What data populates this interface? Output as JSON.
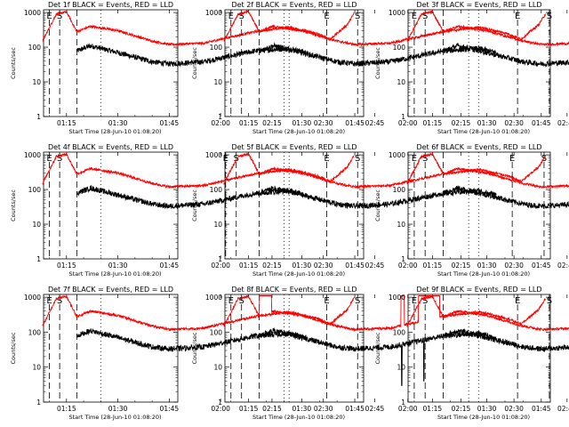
{
  "figure": {
    "panels": [
      {
        "title": "Det 1f BLACK = Events, RED = LLD",
        "detector": "1f",
        "variant": "normal"
      },
      {
        "title": "Det 2f BLACK = Events, RED = LLD",
        "detector": "2f",
        "variant": "normal"
      },
      {
        "title": "Det 3f BLACK = Events, RED = LLD",
        "detector": "3f",
        "variant": "normal"
      },
      {
        "title": "Det 4f BLACK = Events, RED = LLD",
        "detector": "4f",
        "variant": "normal"
      },
      {
        "title": "Det 5f BLACK = Events, RED = LLD",
        "detector": "5f",
        "variant": "shifted"
      },
      {
        "title": "Det 6f BLACK = Events, RED = LLD",
        "detector": "6f",
        "variant": "normal"
      },
      {
        "title": "Det 7f BLACK = Events, RED = LLD",
        "detector": "7f",
        "variant": "normal"
      },
      {
        "title": "Det 8f BLACK = Events, RED = LLD",
        "detector": "8f",
        "variant": "spiky"
      },
      {
        "title": "Det 9f BLACK = Events, RED = LLD",
        "detector": "9f",
        "variant": "dropout"
      }
    ]
  },
  "chart_data": {
    "type": "line",
    "layout": "3x3 grid of identical log-scale time series panels",
    "xlabel": "Start Time (28-Jun-10 01:08:20)",
    "ylabel": "Counts/sec",
    "x_ticks": [
      "01:15",
      "01:30",
      "01:45",
      "02:00",
      "02:15",
      "02:30",
      "02:45"
    ],
    "x_range_minutes_after_01_00": [
      8.3,
      47.5
    ],
    "y_ticks": [
      "1",
      "10",
      "100",
      "1000"
    ],
    "ylim": [
      1,
      1200
    ],
    "y_scale": "log",
    "grid": false,
    "series": [
      {
        "name": "BLACK = Events",
        "color": "#000000",
        "times": [
          "01:18",
          "01:22",
          "01:30",
          "01:40",
          "01:45",
          "01:55",
          "02:00",
          "02:10",
          "02:20",
          "02:25"
        ],
        "values": [
          78,
          110,
          70,
          38,
          33,
          38,
          48,
          78,
          92,
          70
        ]
      },
      {
        "name": "RED = LLD",
        "color": "#ff0000",
        "times": [
          "01:08",
          "01:12",
          "01:15",
          "01:18",
          "01:22",
          "01:30",
          "01:40",
          "01:45",
          "01:55",
          "02:00",
          "02:10",
          "02:20",
          "02:28",
          "02:32",
          "02:37",
          "02:39"
        ],
        "values": [
          150,
          900,
          1050,
          280,
          400,
          300,
          150,
          120,
          130,
          170,
          280,
          380,
          250,
          170,
          450,
          950
        ]
      }
    ],
    "markers": [
      {
        "label": "S",
        "time": "01:13",
        "style": "dashed"
      },
      {
        "label": "E",
        "time": "01:10",
        "style": "dashed"
      },
      {
        "time": "01:18",
        "style": "dashed"
      },
      {
        "time": "01:25",
        "style": "dotted"
      },
      {
        "time": "02:20",
        "style": "dotted"
      },
      {
        "label": "E",
        "time": "02:31",
        "style": "dashed"
      },
      {
        "label": "S",
        "time": "02:40",
        "style": "dashed"
      }
    ]
  }
}
